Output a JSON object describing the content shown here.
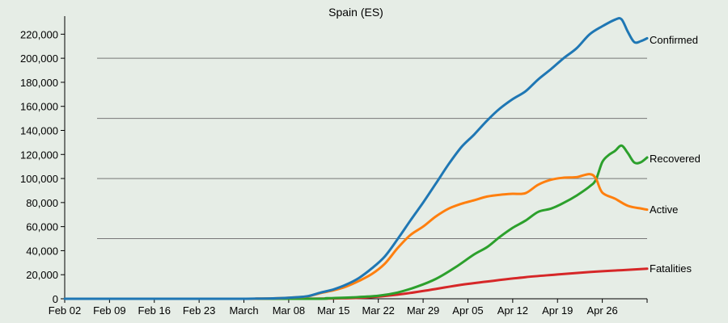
{
  "chart_data": {
    "type": "line",
    "title": "Spain (ES)",
    "xlabel": "",
    "ylabel": "",
    "grid": true,
    "x_range": [
      "2020-02-02",
      "2020-05-03"
    ],
    "ylim": [
      0,
      235000
    ],
    "y_ticks": [
      0,
      20000,
      40000,
      60000,
      80000,
      100000,
      120000,
      140000,
      160000,
      180000,
      200000,
      220000
    ],
    "y_tick_labels": [
      "0",
      "20,000",
      "40,000",
      "60,000",
      "80,000",
      "100,000",
      "120,000",
      "140,000",
      "160,000",
      "180,000",
      "200,000",
      "220,000"
    ],
    "gridlines": [
      50000,
      100000,
      150000,
      200000
    ],
    "x_ticks": [
      {
        "date": "2020-02-02",
        "label": "Feb 02"
      },
      {
        "date": "2020-02-09",
        "label": "Feb 09"
      },
      {
        "date": "2020-02-16",
        "label": "Feb 16"
      },
      {
        "date": "2020-02-23",
        "label": "Feb 23"
      },
      {
        "date": "2020-03-01",
        "label": "March"
      },
      {
        "date": "2020-03-08",
        "label": "Mar 08"
      },
      {
        "date": "2020-03-15",
        "label": "Mar 15"
      },
      {
        "date": "2020-03-22",
        "label": "Mar 22"
      },
      {
        "date": "2020-03-29",
        "label": "Mar 29"
      },
      {
        "date": "2020-04-05",
        "label": "Apr 05"
      },
      {
        "date": "2020-04-12",
        "label": "Apr 12"
      },
      {
        "date": "2020-04-19",
        "label": "Apr 19"
      },
      {
        "date": "2020-04-26",
        "label": "Apr 26"
      }
    ],
    "series": [
      {
        "name": "Confirmed",
        "color": "#1f77b4",
        "points": [
          [
            "2020-02-02",
            0
          ],
          [
            "2020-02-20",
            0
          ],
          [
            "2020-02-29",
            0
          ],
          [
            "2020-03-03",
            150
          ],
          [
            "2020-03-06",
            400
          ],
          [
            "2020-03-09",
            1200
          ],
          [
            "2020-03-11",
            2200
          ],
          [
            "2020-03-13",
            5200
          ],
          [
            "2020-03-15",
            7800
          ],
          [
            "2020-03-17",
            11800
          ],
          [
            "2020-03-19",
            17400
          ],
          [
            "2020-03-21",
            25400
          ],
          [
            "2020-03-23",
            35100
          ],
          [
            "2020-03-25",
            49500
          ],
          [
            "2020-03-27",
            65000
          ],
          [
            "2020-03-29",
            80000
          ],
          [
            "2020-03-31",
            95900
          ],
          [
            "2020-04-02",
            112000
          ],
          [
            "2020-04-04",
            126200
          ],
          [
            "2020-04-06",
            136700
          ],
          [
            "2020-04-08",
            148200
          ],
          [
            "2020-04-10",
            158200
          ],
          [
            "2020-04-12",
            166000
          ],
          [
            "2020-04-14",
            172500
          ],
          [
            "2020-04-16",
            182500
          ],
          [
            "2020-04-18",
            191000
          ],
          [
            "2020-04-20",
            200200
          ],
          [
            "2020-04-22",
            208400
          ],
          [
            "2020-04-24",
            219800
          ],
          [
            "2020-04-26",
            226600
          ],
          [
            "2020-04-28",
            232100
          ],
          [
            "2020-04-29",
            232400
          ],
          [
            "2020-04-30",
            221900
          ],
          [
            "2020-05-01",
            213400
          ],
          [
            "2020-05-02",
            214200
          ],
          [
            "2020-05-03",
            216600
          ]
        ],
        "label": "Confirmed"
      },
      {
        "name": "Recovered",
        "color": "#2ca02c",
        "points": [
          [
            "2020-02-02",
            0
          ],
          [
            "2020-03-10",
            0
          ],
          [
            "2020-03-14",
            500
          ],
          [
            "2020-03-18",
            1200
          ],
          [
            "2020-03-22",
            2500
          ],
          [
            "2020-03-25",
            5200
          ],
          [
            "2020-03-28",
            10000
          ],
          [
            "2020-03-31",
            16500
          ],
          [
            "2020-04-03",
            26000
          ],
          [
            "2020-04-06",
            37000
          ],
          [
            "2020-04-08",
            43000
          ],
          [
            "2020-04-10",
            51500
          ],
          [
            "2020-04-12",
            59000
          ],
          [
            "2020-04-14",
            65000
          ],
          [
            "2020-04-16",
            72300
          ],
          [
            "2020-04-18",
            75000
          ],
          [
            "2020-04-20",
            79800
          ],
          [
            "2020-04-22",
            85900
          ],
          [
            "2020-04-24",
            93300
          ],
          [
            "2020-04-25",
            99000
          ],
          [
            "2020-04-26",
            113700
          ],
          [
            "2020-04-27",
            119500
          ],
          [
            "2020-04-28",
            123000
          ],
          [
            "2020-04-29",
            127400
          ],
          [
            "2020-04-30",
            121000
          ],
          [
            "2020-05-01",
            113300
          ],
          [
            "2020-05-02",
            113500
          ],
          [
            "2020-05-03",
            117500
          ]
        ],
        "label": "Recovered"
      },
      {
        "name": "Active",
        "color": "#ff7f0e",
        "points": [
          [
            "2020-02-02",
            0
          ],
          [
            "2020-02-29",
            0
          ],
          [
            "2020-03-03",
            150
          ],
          [
            "2020-03-06",
            400
          ],
          [
            "2020-03-09",
            1200
          ],
          [
            "2020-03-11",
            2000
          ],
          [
            "2020-03-13",
            4800
          ],
          [
            "2020-03-15",
            7000
          ],
          [
            "2020-03-17",
            10200
          ],
          [
            "2020-03-19",
            14900
          ],
          [
            "2020-03-21",
            20600
          ],
          [
            "2020-03-23",
            29100
          ],
          [
            "2020-03-25",
            42000
          ],
          [
            "2020-03-27",
            53000
          ],
          [
            "2020-03-29",
            60000
          ],
          [
            "2020-03-31",
            68500
          ],
          [
            "2020-04-02",
            75000
          ],
          [
            "2020-04-04",
            79000
          ],
          [
            "2020-04-06",
            82000
          ],
          [
            "2020-04-08",
            85000
          ],
          [
            "2020-04-10",
            86500
          ],
          [
            "2020-04-12",
            87300
          ],
          [
            "2020-04-14",
            87800
          ],
          [
            "2020-04-16",
            94900
          ],
          [
            "2020-04-18",
            99000
          ],
          [
            "2020-04-20",
            100700
          ],
          [
            "2020-04-22",
            101200
          ],
          [
            "2020-04-24",
            103700
          ],
          [
            "2020-04-25",
            100000
          ],
          [
            "2020-04-26",
            88300
          ],
          [
            "2020-04-28",
            83200
          ],
          [
            "2020-04-30",
            77300
          ],
          [
            "2020-05-02",
            75100
          ],
          [
            "2020-05-03",
            74100
          ]
        ],
        "label": "Active"
      },
      {
        "name": "Fatalities",
        "color": "#d62728",
        "points": [
          [
            "2020-02-02",
            0
          ],
          [
            "2020-03-05",
            0
          ],
          [
            "2020-03-10",
            50
          ],
          [
            "2020-03-15",
            300
          ],
          [
            "2020-03-20",
            1000
          ],
          [
            "2020-03-25",
            3400
          ],
          [
            "2020-03-30",
            7300
          ],
          [
            "2020-04-04",
            11700
          ],
          [
            "2020-04-09",
            15000
          ],
          [
            "2020-04-14",
            18000
          ],
          [
            "2020-04-19",
            20200
          ],
          [
            "2020-04-24",
            22200
          ],
          [
            "2020-04-29",
            23800
          ],
          [
            "2020-05-03",
            25000
          ]
        ],
        "label": "Fatalities"
      }
    ]
  }
}
